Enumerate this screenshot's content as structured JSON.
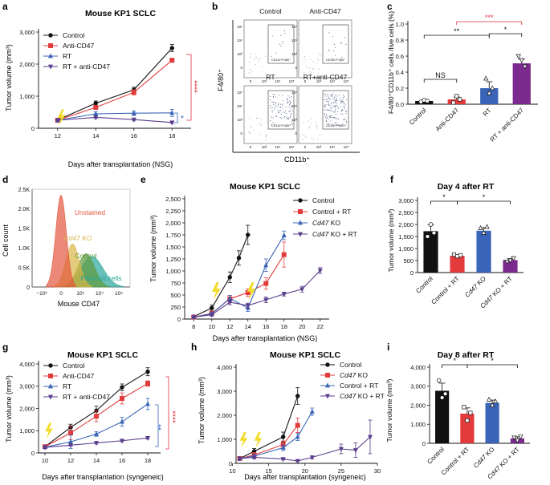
{
  "colors": {
    "black": "#111111",
    "red": "#e33b3b",
    "blue": "#3a64b7",
    "purple": "#5a3d8c",
    "purple_bar": "#7b2a8e",
    "lightning": "#f2dc2e",
    "sig_red": "#e0303d",
    "sig_blue": "#2f62c0",
    "hist_red": "#e4563d",
    "hist_gold": "#d9b547",
    "hist_green": "#5e9a3a",
    "hist_teal": "#2aa59a"
  },
  "panels": {
    "a": {
      "letter": "a",
      "title": "Mouse KP1 SCLC",
      "xlabel": "Days after transplantation (NSG)",
      "ylabel": "Tumor volume (mm³)",
      "sig": [
        "****",
        "*"
      ]
    },
    "b": {
      "letter": "b",
      "ylabel": "F4/80⁺",
      "xlabel": "CD11b⁺",
      "cells": [
        "Control",
        "Anti-CD47",
        "RT",
        "RT+anti-CD47"
      ],
      "gate_label": "CD11b⁺F480⁺"
    },
    "c": {
      "letter": "c",
      "ylabel": "F4/80⁺CD11b⁺ cells /live cells (%)",
      "sig": [
        "NS",
        "**",
        "***",
        "*"
      ]
    },
    "d": {
      "letter": "d",
      "xlabel": "Mouse CD47",
      "ylabel": "Cell count",
      "labels": [
        "Unstained",
        "Cd47 KO",
        "Control",
        "Parental cells"
      ]
    },
    "e": {
      "letter": "e",
      "title": "Mouse KP1 SCLC",
      "xlabel": "Days after transplantation (NSG)",
      "ylabel": "Tumor volume (mm³)"
    },
    "f": {
      "letter": "f",
      "title": "Day 4 after RT",
      "ylabel": "Tumor volume (mm³)",
      "sig": [
        "*",
        "*"
      ]
    },
    "g": {
      "letter": "g",
      "title": "Mouse KP1 SCLC",
      "xlabel": "Days after transplantation (syngeneic)",
      "ylabel": "Tumor volume (mm³)",
      "sig": [
        "****",
        "**"
      ]
    },
    "h": {
      "letter": "h",
      "title": "Mouse KP1 SCLC",
      "xlabel": "Days after transplantation (syngeneic)",
      "ylabel": "Tumor volume (mm³)"
    },
    "i": {
      "letter": "i",
      "title": "Day 8 after RT",
      "ylabel": "Tumor volume (mm³)",
      "sig": [
        "*",
        "*"
      ]
    }
  },
  "chart_data": [
    {
      "panel": "a",
      "type": "line",
      "x": [
        12,
        14,
        16,
        18
      ],
      "xlim": [
        11,
        19
      ],
      "ylim": [
        0,
        3000
      ],
      "yticks": [
        0,
        1000,
        2000,
        3000
      ],
      "series": [
        {
          "name": "Control",
          "values": [
            260,
            780,
            1200,
            2500
          ],
          "err": [
            40,
            70,
            80,
            110
          ]
        },
        {
          "name": "Anti-CD47",
          "values": [
            250,
            650,
            1120,
            2120
          ],
          "err": [
            30,
            60,
            80,
            60
          ]
        },
        {
          "name": "RT",
          "values": [
            250,
            450,
            470,
            480
          ],
          "err": [
            30,
            60,
            70,
            110
          ]
        },
        {
          "name": "RT + anti-CD47",
          "values": [
            250,
            340,
            270,
            180
          ],
          "err": [
            30,
            40,
            40,
            30
          ]
        }
      ]
    },
    {
      "panel": "c",
      "type": "bar",
      "categories": [
        "Control",
        "Anti-CD47",
        "RT",
        "RT + anti-CD47"
      ],
      "ylim": [
        0,
        1.0
      ],
      "yticks": [
        0,
        0.2,
        0.4,
        0.6,
        0.8,
        1.0
      ],
      "values": [
        0.04,
        0.06,
        0.2,
        0.51
      ],
      "err": [
        0.01,
        0.03,
        0.08,
        0.05
      ]
    },
    {
      "panel": "d",
      "type": "area",
      "xticks": [
        "−10³",
        "0",
        "10³",
        "10⁴",
        "10⁵"
      ],
      "ylim": [
        0,
        2.5
      ],
      "yticks": [
        "0",
        "0.5K",
        "1.0K",
        "1.5K",
        "2.0K",
        "2.5K"
      ],
      "series": [
        {
          "name": "Unstained",
          "peak_x": 0.0,
          "peak_y": 2.35
        },
        {
          "name": "Cd47 KO",
          "peak_x": 0.6,
          "peak_y": 1.1
        },
        {
          "name": "Control",
          "peak_x": 1.3,
          "peak_y": 0.85
        },
        {
          "name": "Parental cells",
          "peak_x": 1.6,
          "peak_y": 0.78
        }
      ]
    },
    {
      "panel": "e",
      "type": "line",
      "x": [
        8,
        10,
        12,
        14,
        16,
        18,
        20,
        22
      ],
      "xlim": [
        7,
        23
      ],
      "ylim": [
        0,
        2500
      ],
      "yticks": [
        0,
        250,
        500,
        750,
        1000,
        1250,
        1500,
        1750,
        2000,
        2250,
        2500
      ],
      "series": [
        {
          "name": "Control",
          "x": [
            8,
            10,
            12,
            13,
            14
          ],
          "values": [
            50,
            230,
            870,
            1270,
            1750
          ],
          "err": [
            20,
            60,
            110,
            150,
            200
          ]
        },
        {
          "name": "Control + RT",
          "x": [
            8,
            10,
            12,
            14,
            16,
            18
          ],
          "values": [
            40,
            120,
            420,
            550,
            740,
            1340
          ],
          "err": [
            20,
            40,
            70,
            80,
            120,
            260
          ]
        },
        {
          "name": "Cd47 KO",
          "x": [
            8,
            10,
            12,
            14,
            16,
            18
          ],
          "values": [
            40,
            110,
            430,
            230,
            1120,
            1740
          ],
          "err": [
            20,
            30,
            60,
            70,
            130,
            90
          ]
        },
        {
          "name": "Cd47 KO + RT",
          "x": [
            8,
            10,
            12,
            14,
            16,
            18,
            20,
            22
          ],
          "values": [
            40,
            90,
            350,
            280,
            400,
            520,
            620,
            1010
          ],
          "err": [
            20,
            30,
            50,
            50,
            60,
            40,
            60,
            60
          ]
        }
      ]
    },
    {
      "panel": "f",
      "type": "bar",
      "categories": [
        "Control",
        "Control + RT",
        "Cd47 KO",
        "Cd47 KO + RT"
      ],
      "ylim": [
        0,
        3000
      ],
      "yticks": [
        0,
        500,
        1000,
        1500,
        2000,
        2500,
        3000
      ],
      "values": [
        1720,
        700,
        1740,
        520
      ],
      "err": [
        260,
        40,
        130,
        60
      ]
    },
    {
      "panel": "g",
      "type": "line",
      "x": [
        10,
        12,
        14,
        16,
        18
      ],
      "xlim": [
        9.5,
        19
      ],
      "ylim": [
        0,
        4000
      ],
      "yticks": [
        0,
        1000,
        2000,
        3000,
        4000
      ],
      "series": [
        {
          "name": "Control",
          "values": [
            280,
            1150,
            1900,
            2950,
            3650
          ],
          "err": [
            50,
            140,
            200,
            150,
            180
          ]
        },
        {
          "name": "Anti-CD47",
          "values": [
            280,
            900,
            1650,
            2450,
            3120
          ],
          "err": [
            50,
            300,
            240,
            250,
            120
          ]
        },
        {
          "name": "RT",
          "values": [
            260,
            500,
            850,
            1400,
            2200
          ],
          "err": [
            40,
            300,
            100,
            200,
            250
          ]
        },
        {
          "name": "RT + anti-CD47",
          "values": [
            250,
            350,
            450,
            550,
            670
          ],
          "err": [
            40,
            40,
            50,
            50,
            50
          ]
        }
      ]
    },
    {
      "panel": "h",
      "type": "line",
      "x": [
        11,
        13,
        17,
        19,
        21,
        25,
        27,
        29
      ],
      "xlim": [
        10.5,
        30
      ],
      "ylim": [
        0,
        4000
      ],
      "yticks": [
        0,
        1000,
        2000,
        3000,
        4000
      ],
      "series": [
        {
          "name": "Control",
          "x": [
            11,
            13,
            17,
            19
          ],
          "values": [
            200,
            500,
            1100,
            2800
          ],
          "err": [
            50,
            120,
            200,
            350
          ]
        },
        {
          "name": "Cd47 KO",
          "x": [
            11,
            13,
            17,
            19
          ],
          "values": [
            200,
            350,
            780,
            1580
          ],
          "err": [
            50,
            100,
            150,
            300
          ]
        },
        {
          "name": "Control + RT",
          "x": [
            11,
            13,
            17,
            19,
            21
          ],
          "values": [
            200,
            300,
            650,
            1100,
            2150
          ],
          "err": [
            50,
            80,
            120,
            150,
            150
          ]
        },
        {
          "name": "Cd47 KO + RT",
          "x": [
            11,
            13,
            17,
            19,
            21,
            25,
            27,
            29
          ],
          "values": [
            200,
            250,
            180,
            100,
            250,
            600,
            550,
            1100
          ],
          "err": [
            50,
            60,
            40,
            30,
            60,
            200,
            300,
            700
          ]
        }
      ]
    },
    {
      "panel": "i",
      "type": "bar",
      "categories": [
        "Control",
        "Control + RT",
        "Cd47 KO",
        "Cd47 KO + RT"
      ],
      "ylim": [
        0,
        4000
      ],
      "yticks": [
        0,
        1000,
        2000,
        3000,
        4000
      ],
      "values": [
        2760,
        1560,
        2120,
        260
      ],
      "err": [
        400,
        300,
        150,
        80
      ]
    }
  ]
}
